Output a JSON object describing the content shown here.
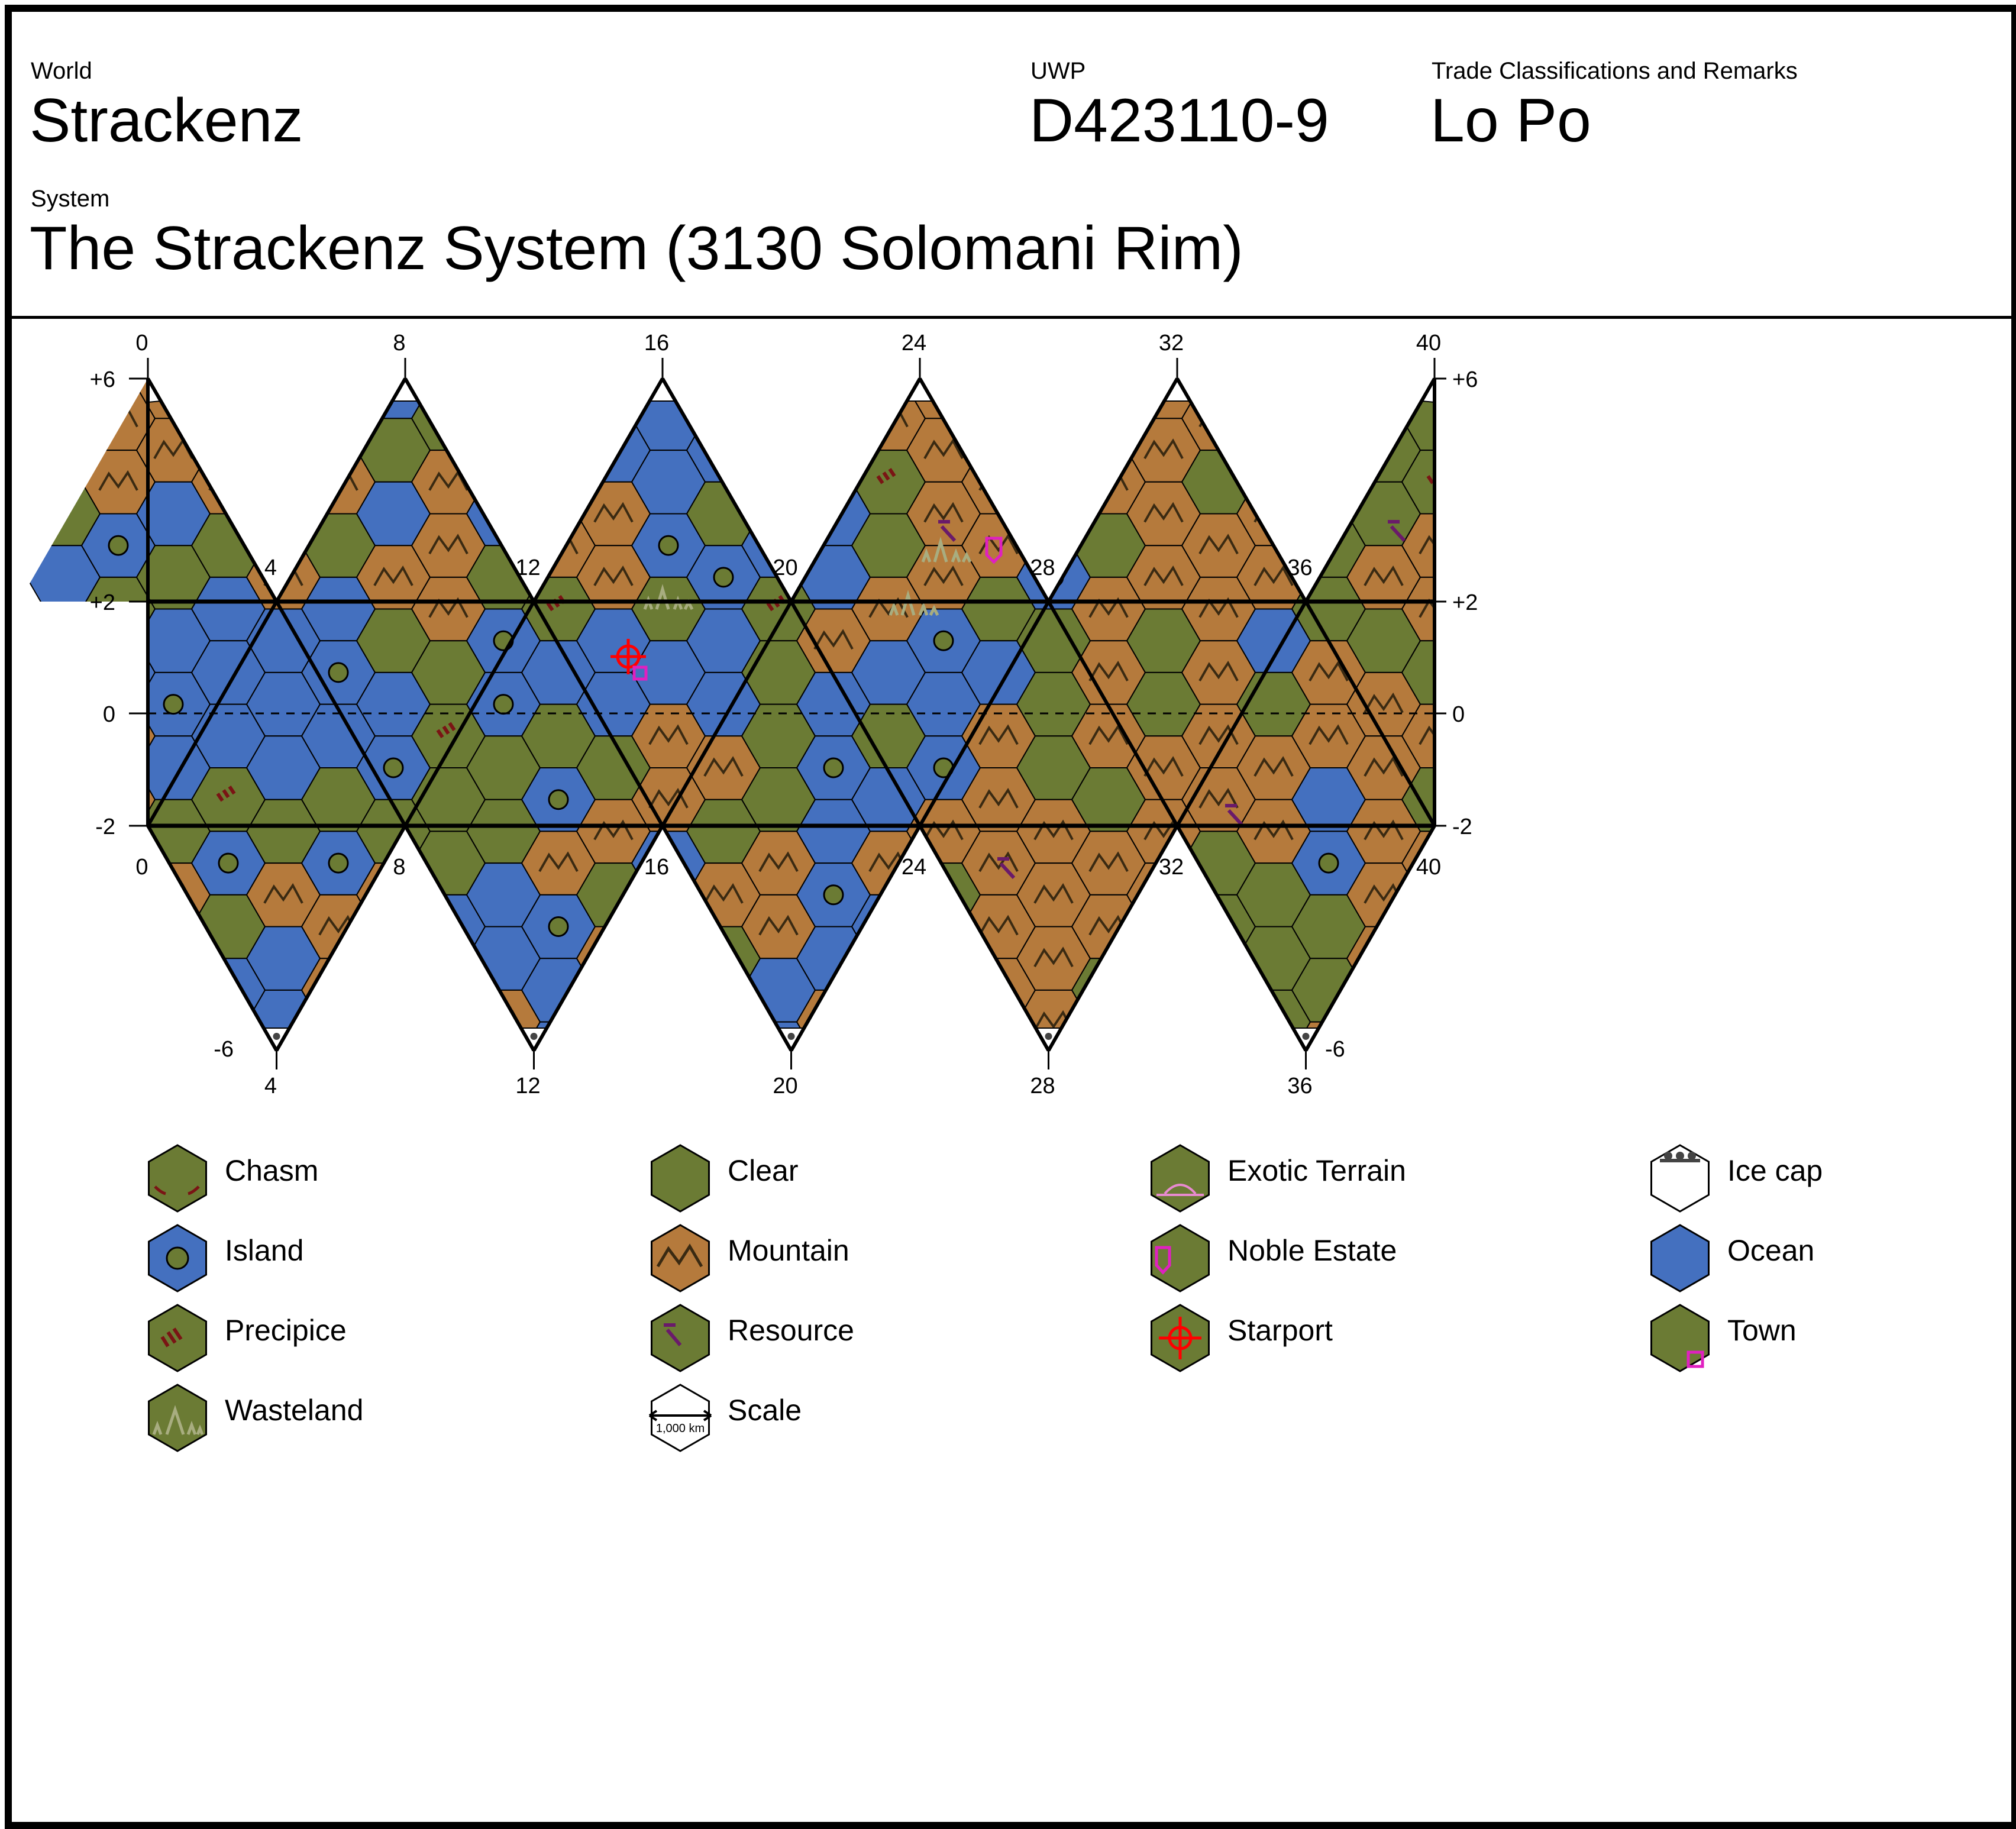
{
  "header": {
    "world_label": "World",
    "world_name": "Strackenz",
    "uwp_label": "UWP",
    "uwp": "D423110-9",
    "trade_label": "Trade Classifications and Remarks",
    "trade": "Lo Po",
    "system_label": "System",
    "system_name": "The Strackenz System (3130 Solomani Rim)"
  },
  "map": {
    "top_ticks": [
      "0",
      "8",
      "16",
      "24",
      "32",
      "40"
    ],
    "inner_top_ticks": [
      "4",
      "12",
      "20",
      "28",
      "36"
    ],
    "bottom_inner_ticks": [
      "0",
      "8",
      "16",
      "24",
      "32",
      "40"
    ],
    "bottom_ticks": [
      "4",
      "12",
      "20",
      "28",
      "36"
    ],
    "lat_labels": [
      "+6",
      "+2",
      "0",
      "-2",
      "-6"
    ],
    "colors": {
      "clear": "#6b7b34",
      "mountain": "#b57a3c",
      "ocean": "#4470bf",
      "line": "#000000",
      "chasm": "#7a1414",
      "resource": "#6a1a6a",
      "noble": "#e020c0",
      "starport": "#ff0000",
      "wasteland": "#a8ad80"
    }
  },
  "legend": [
    {
      "label": "Chasm",
      "icon": "chasm-icon",
      "fill": "#6b7b34"
    },
    {
      "label": "Clear",
      "icon": "clear-icon",
      "fill": "#6b7b34"
    },
    {
      "label": "Exotic Terrain",
      "icon": "exotic-terrain-icon",
      "fill": "#6b7b34"
    },
    {
      "label": "Ice cap",
      "icon": "ice-cap-icon",
      "fill": "#ffffff"
    },
    {
      "label": "Island",
      "icon": "island-icon",
      "fill": "#4470bf"
    },
    {
      "label": "Mountain",
      "icon": "mountain-icon",
      "fill": "#b57a3c"
    },
    {
      "label": "Noble Estate",
      "icon": "noble-estate-icon",
      "fill": "#6b7b34"
    },
    {
      "label": "Ocean",
      "icon": "ocean-icon",
      "fill": "#4470bf"
    },
    {
      "label": "Precipice",
      "icon": "precipice-icon",
      "fill": "#6b7b34"
    },
    {
      "label": "Resource",
      "icon": "resource-icon",
      "fill": "#6b7b34"
    },
    {
      "label": "Starport",
      "icon": "starport-icon",
      "fill": "#6b7b34"
    },
    {
      "label": "Town",
      "icon": "town-icon",
      "fill": "#6b7b34"
    },
    {
      "label": "Wasteland",
      "icon": "wasteland-icon",
      "fill": "#6b7b34"
    },
    {
      "label": "Scale",
      "icon": "scale-icon",
      "fill": "#ffffff",
      "note": "1,000 km"
    }
  ]
}
